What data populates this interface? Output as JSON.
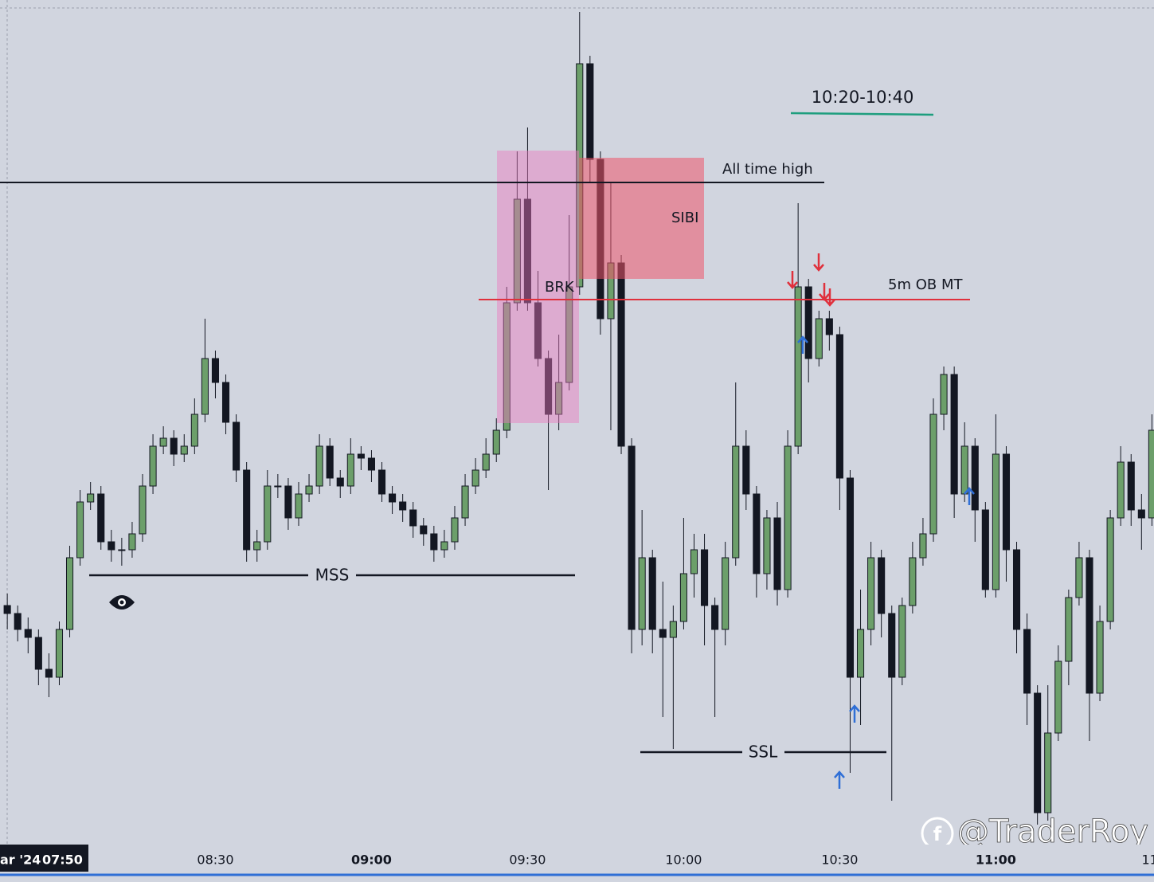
{
  "chart_data": {
    "type": "candlestick",
    "x": [
      470,
      472,
      474,
      476,
      478,
      480,
      482,
      484,
      486,
      488,
      490,
      492,
      494,
      496,
      498,
      500,
      502,
      504,
      506,
      508,
      510,
      512,
      514,
      516,
      518,
      520,
      522,
      524,
      526,
      528,
      530,
      532,
      534,
      536,
      538,
      540,
      542,
      544,
      546,
      548,
      550,
      552,
      554,
      556,
      558,
      560,
      562,
      564,
      566,
      568,
      570,
      572,
      574,
      576,
      578,
      580,
      582,
      584,
      586,
      588,
      590,
      592,
      594,
      596,
      598,
      600,
      602,
      604,
      606,
      608,
      610,
      612,
      614,
      616,
      618,
      620,
      622,
      624,
      626,
      628,
      630,
      632,
      634,
      636,
      638,
      640,
      642,
      644,
      646,
      648,
      650,
      652,
      654,
      656,
      658,
      660,
      662,
      664,
      666,
      668,
      670,
      672,
      674,
      676,
      678,
      680,
      682,
      684,
      686,
      688,
      690
    ],
    "open": [
      300,
      290,
      270,
      260,
      220,
      210,
      270,
      360,
      430,
      440,
      380,
      370,
      370,
      390,
      450,
      500,
      510,
      490,
      500,
      540,
      610,
      580,
      530,
      470,
      370,
      380,
      450,
      450,
      410,
      440,
      450,
      500,
      460,
      450,
      490,
      485,
      470,
      440,
      430,
      420,
      400,
      390,
      370,
      380,
      410,
      450,
      470,
      490,
      520,
      680,
      810,
      680,
      610,
      540,
      580,
      700,
      980,
      860,
      660,
      730,
      500,
      270,
      360,
      270,
      260,
      280,
      340,
      370,
      300,
      270,
      360,
      500,
      440,
      340,
      410,
      320,
      500,
      700,
      610,
      660,
      640,
      460,
      210,
      270,
      360,
      290,
      210,
      300,
      360,
      390,
      540,
      590,
      440,
      500,
      420,
      320,
      490,
      370,
      270,
      190,
      40,
      140,
      230,
      310,
      360,
      190,
      280,
      410,
      480,
      420,
      410
    ],
    "high": [
      315,
      300,
      285,
      270,
      240,
      280,
      375,
      445,
      455,
      450,
      395,
      385,
      405,
      465,
      515,
      525,
      520,
      515,
      560,
      660,
      620,
      590,
      540,
      480,
      395,
      470,
      465,
      460,
      455,
      465,
      515,
      510,
      470,
      510,
      500,
      495,
      480,
      450,
      440,
      430,
      410,
      400,
      395,
      425,
      465,
      485,
      510,
      535,
      700,
      870,
      900,
      720,
      620,
      640,
      790,
      1045,
      990,
      870,
      830,
      740,
      510,
      420,
      370,
      330,
      300,
      410,
      390,
      390,
      310,
      380,
      580,
      520,
      450,
      420,
      430,
      520,
      805,
      710,
      670,
      670,
      650,
      470,
      320,
      380,
      370,
      300,
      310,
      380,
      410,
      560,
      600,
      600,
      530,
      510,
      430,
      540,
      500,
      380,
      290,
      200,
      200,
      250,
      320,
      380,
      370,
      300,
      420,
      500,
      490,
      440,
      540
    ],
    "low": [
      270,
      255,
      240,
      200,
      185,
      200,
      260,
      350,
      420,
      370,
      355,
      350,
      360,
      380,
      440,
      490,
      475,
      480,
      490,
      530,
      560,
      515,
      455,
      355,
      355,
      370,
      435,
      395,
      400,
      430,
      440,
      450,
      435,
      440,
      470,
      455,
      430,
      415,
      405,
      385,
      375,
      355,
      360,
      370,
      400,
      440,
      460,
      480,
      510,
      670,
      670,
      600,
      445,
      520,
      570,
      690,
      830,
      640,
      520,
      490,
      240,
      250,
      240,
      160,
      120,
      270,
      310,
      250,
      160,
      250,
      350,
      420,
      310,
      320,
      300,
      310,
      490,
      580,
      600,
      620,
      420,
      90,
      150,
      250,
      260,
      55,
      200,
      290,
      350,
      380,
      520,
      410,
      430,
      380,
      310,
      310,
      330,
      240,
      150,
      25,
      30,
      130,
      200,
      300,
      130,
      180,
      270,
      400,
      400,
      370,
      400
    ],
    "close": [
      290,
      270,
      260,
      220,
      210,
      270,
      360,
      430,
      440,
      380,
      370,
      370,
      390,
      450,
      500,
      510,
      490,
      500,
      540,
      610,
      580,
      530,
      470,
      370,
      380,
      450,
      450,
      410,
      440,
      450,
      500,
      460,
      450,
      490,
      485,
      470,
      440,
      430,
      420,
      400,
      390,
      370,
      380,
      410,
      450,
      470,
      490,
      520,
      680,
      810,
      680,
      610,
      540,
      580,
      700,
      980,
      860,
      660,
      730,
      500,
      270,
      360,
      270,
      260,
      280,
      340,
      370,
      300,
      270,
      360,
      500,
      440,
      340,
      410,
      320,
      500,
      700,
      610,
      660,
      640,
      460,
      210,
      270,
      360,
      290,
      210,
      300,
      360,
      390,
      540,
      590,
      440,
      500,
      420,
      320,
      490,
      370,
      270,
      190,
      40,
      140,
      230,
      310,
      360,
      190,
      280,
      410,
      480,
      420,
      410,
      520
    ],
    "up_color": "#6c9f6a",
    "down_color": "#131722",
    "xlim": [
      468.6,
      690.4
    ],
    "ylim": [
      0,
      1060
    ],
    "xticks": [
      {
        "value": 510,
        "label": "08:30"
      },
      {
        "value": 540,
        "label": "09:00"
      },
      {
        "value": 570,
        "label": "09:30"
      },
      {
        "value": 600,
        "label": "10:00"
      },
      {
        "value": 630,
        "label": "10:30"
      },
      {
        "value": 660,
        "label": "11:00"
      },
      {
        "value": 690,
        "label": "11:"
      }
    ],
    "date_label": [
      "ar '24",
      "07:50"
    ],
    "annotations": [
      "10:20-10:40",
      "All time high",
      "SIBI",
      "BRK",
      "5m OB MT",
      "MSS",
      "SSL"
    ],
    "watermark": "@TraderRoy"
  }
}
